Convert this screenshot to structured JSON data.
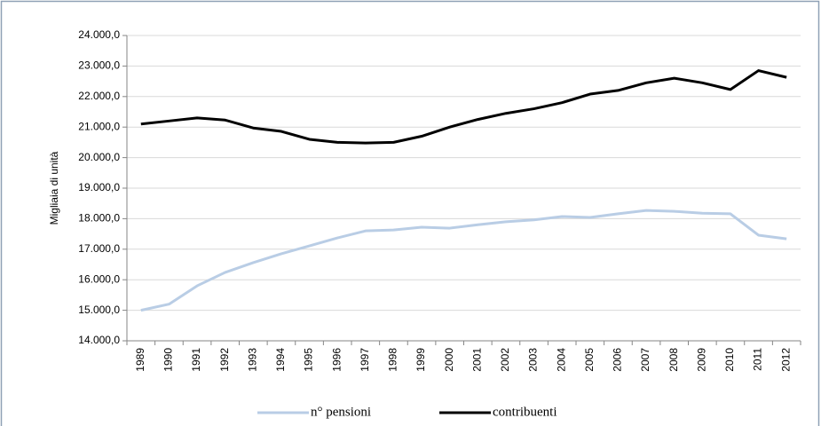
{
  "chart_data": {
    "type": "line",
    "y_label": "Migliaia di unità",
    "categories": [
      "1989",
      "1990",
      "1991",
      "1992",
      "1993",
      "1994",
      "1995",
      "1996",
      "1997",
      "1998",
      "1999",
      "2000",
      "2001",
      "2002",
      "2003",
      "2004",
      "2005",
      "2006",
      "2007",
      "2008",
      "2009",
      "2010",
      "2011",
      "2012"
    ],
    "series": [
      {
        "name": "n° pensioni",
        "color": "#b9cde5",
        "values": [
          15000,
          15200,
          15800,
          16240,
          16560,
          16850,
          17110,
          17370,
          17600,
          17630,
          17720,
          17690,
          17800,
          17900,
          17960,
          18070,
          18040,
          18160,
          18270,
          18240,
          18180,
          18160,
          17460,
          17340
        ]
      },
      {
        "name": "contribuenti",
        "color": "#000000",
        "values": [
          21100,
          21200,
          21300,
          21230,
          20970,
          20860,
          20600,
          20500,
          20480,
          20500,
          20700,
          21000,
          21250,
          21450,
          21600,
          21800,
          22080,
          22200,
          22450,
          22600,
          22450,
          22230,
          22850,
          22630
        ]
      }
    ],
    "ylim": [
      14000,
      24000
    ],
    "yticks": [
      {
        "value": 14000,
        "label": "14.000,0"
      },
      {
        "value": 15000,
        "label": "15.000,0"
      },
      {
        "value": 16000,
        "label": "16.000,0"
      },
      {
        "value": 17000,
        "label": "17.000,0"
      },
      {
        "value": 18000,
        "label": "18.000,0"
      },
      {
        "value": 19000,
        "label": "19.000,0"
      },
      {
        "value": 20000,
        "label": "20.000,0"
      },
      {
        "value": 21000,
        "label": "21.000,0"
      },
      {
        "value": 22000,
        "label": "22.000,0"
      },
      {
        "value": 23000,
        "label": "23.000,0"
      },
      {
        "value": 24000,
        "label": "24.000,0"
      }
    ],
    "grid": true,
    "legend": "bottom"
  }
}
